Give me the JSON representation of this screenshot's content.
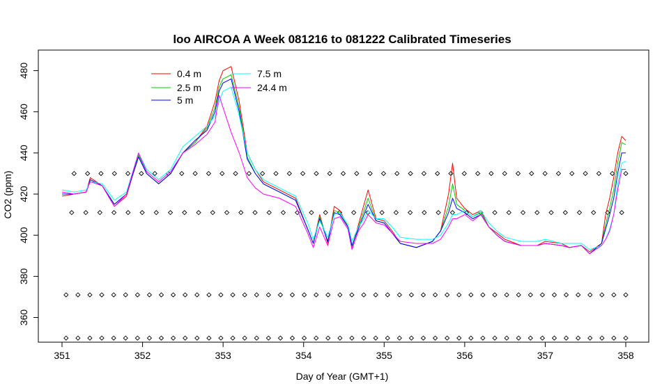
{
  "chart_data": {
    "type": "line",
    "title": "loo AIRCOA A  Week 081216 to 081222  Calibrated Timeseries",
    "xlabel": "Day of Year (GMT+1)",
    "ylabel": "CO2 (ppm)",
    "xlim": [
      351,
      358
    ],
    "ylim": [
      348,
      490
    ],
    "x_ticks": [
      "351",
      "352",
      "353",
      "354",
      "355",
      "356",
      "357",
      "358"
    ],
    "y_ticks": [
      "360",
      "380",
      "400",
      "420",
      "440",
      "460",
      "480"
    ],
    "grid": false,
    "legend_position": "top-left",
    "legend": [
      {
        "label": "0.4 m",
        "color": "#ff0000"
      },
      {
        "label": "2.5 m",
        "color": "#00cc00"
      },
      {
        "label": "5 m",
        "color": "#0000ff"
      },
      {
        "label": "7.5 m",
        "color": "#00ffff"
      },
      {
        "label": "24.4 m",
        "color": "#ff00ff"
      }
    ],
    "series": [
      {
        "name": "0.4 m",
        "color": "#ff0000",
        "x": [
          351.0,
          351.15,
          351.3,
          351.35,
          351.5,
          351.65,
          351.8,
          351.95,
          352.05,
          352.2,
          352.35,
          352.5,
          352.65,
          352.8,
          352.9,
          352.95,
          353.0,
          353.1,
          353.2,
          353.3,
          353.4,
          353.5,
          353.7,
          353.9,
          354.05,
          354.12,
          354.2,
          354.3,
          354.38,
          354.45,
          354.55,
          354.6,
          354.68,
          354.75,
          354.8,
          354.9,
          355.0,
          355.1,
          355.2,
          355.4,
          355.6,
          355.7,
          355.8,
          355.85,
          355.9,
          356.0,
          356.1,
          356.2,
          356.3,
          356.4,
          356.5,
          356.7,
          356.9,
          357.0,
          357.2,
          357.3,
          357.45,
          357.55,
          357.7,
          357.75,
          357.8,
          357.85,
          357.9,
          357.95,
          358.0
        ],
        "y": [
          419,
          420,
          421,
          428,
          424,
          414,
          419,
          439,
          430,
          425,
          430,
          440,
          445,
          453,
          465,
          475,
          480,
          482,
          465,
          440,
          432,
          426,
          422,
          418,
          403,
          396,
          410,
          396,
          414,
          412,
          404,
          394,
          405,
          415,
          422,
          408,
          407,
          402,
          396,
          394,
          397,
          402,
          420,
          435,
          418,
          413,
          410,
          412,
          404,
          401,
          398,
          395,
          395,
          397,
          396,
          394,
          395,
          392,
          396,
          410,
          418,
          428,
          440,
          448,
          446
        ]
      },
      {
        "name": "2.5 m",
        "color": "#00cc00",
        "x": [
          351.0,
          351.15,
          351.3,
          351.35,
          351.5,
          351.65,
          351.8,
          351.95,
          352.05,
          352.2,
          352.35,
          352.5,
          352.65,
          352.8,
          352.9,
          352.95,
          353.0,
          353.1,
          353.2,
          353.3,
          353.4,
          353.5,
          353.7,
          353.9,
          354.05,
          354.12,
          354.2,
          354.3,
          354.38,
          354.45,
          354.55,
          354.6,
          354.68,
          354.75,
          354.8,
          354.9,
          355.0,
          355.1,
          355.2,
          355.4,
          355.6,
          355.7,
          355.8,
          355.85,
          355.9,
          356.0,
          356.1,
          356.2,
          356.3,
          356.4,
          356.5,
          356.7,
          356.9,
          357.0,
          357.2,
          357.3,
          357.45,
          357.55,
          357.7,
          357.75,
          357.8,
          357.85,
          357.9,
          357.95,
          358.0
        ],
        "y": [
          420,
          420,
          421,
          427,
          424,
          415,
          420,
          439,
          430,
          425,
          430,
          440,
          445,
          452,
          462,
          472,
          476,
          478,
          462,
          438,
          430,
          425,
          421,
          417,
          403,
          396,
          409,
          397,
          412,
          411,
          404,
          394,
          404,
          412,
          418,
          407,
          406,
          401,
          396,
          394,
          397,
          402,
          414,
          425,
          415,
          412,
          409,
          411,
          404,
          400,
          397,
          395,
          395,
          396,
          395,
          394,
          395,
          391,
          396,
          405,
          413,
          422,
          435,
          445,
          444
        ]
      },
      {
        "name": "5 m",
        "color": "#0000ff",
        "x": [
          351.0,
          351.15,
          351.3,
          351.35,
          351.5,
          351.65,
          351.8,
          351.95,
          352.05,
          352.2,
          352.35,
          352.5,
          352.65,
          352.8,
          352.9,
          352.95,
          353.0,
          353.1,
          353.2,
          353.3,
          353.4,
          353.5,
          353.7,
          353.9,
          354.05,
          354.12,
          354.2,
          354.3,
          354.38,
          354.45,
          354.55,
          354.6,
          354.68,
          354.75,
          354.8,
          354.9,
          355.0,
          355.1,
          355.2,
          355.4,
          355.6,
          355.7,
          355.8,
          355.85,
          355.9,
          356.0,
          356.1,
          356.2,
          356.3,
          356.4,
          356.5,
          356.7,
          356.9,
          357.0,
          357.2,
          357.3,
          357.45,
          357.55,
          357.7,
          357.75,
          357.8,
          357.85,
          357.9,
          357.95,
          358.0
        ],
        "y": [
          420,
          420,
          421,
          427,
          424,
          415,
          420,
          438,
          430,
          425,
          430,
          440,
          446,
          451,
          460,
          470,
          474,
          476,
          460,
          437,
          430,
          425,
          421,
          417,
          403,
          396,
          408,
          397,
          411,
          410,
          404,
          395,
          403,
          410,
          415,
          407,
          406,
          401,
          396,
          394,
          397,
          402,
          411,
          418,
          413,
          411,
          408,
          410,
          404,
          400,
          397,
          395,
          395,
          396,
          395,
          394,
          395,
          391,
          396,
          403,
          410,
          418,
          430,
          440,
          440
        ]
      },
      {
        "name": "7.5 m",
        "color": "#00ffff",
        "x": [
          351.0,
          351.15,
          351.3,
          351.35,
          351.5,
          351.65,
          351.8,
          351.95,
          352.05,
          352.2,
          352.35,
          352.5,
          352.65,
          352.8,
          352.9,
          352.95,
          353.0,
          353.1,
          353.2,
          353.3,
          353.4,
          353.5,
          353.7,
          353.9,
          354.05,
          354.12,
          354.2,
          354.3,
          354.38,
          354.45,
          354.55,
          354.6,
          354.68,
          354.75,
          354.8,
          354.9,
          355.0,
          355.1,
          355.2,
          355.4,
          355.6,
          355.7,
          355.8,
          355.85,
          355.9,
          356.0,
          356.1,
          356.2,
          356.3,
          356.4,
          356.5,
          356.7,
          356.9,
          357.0,
          357.2,
          357.3,
          357.45,
          357.55,
          357.7,
          357.75,
          357.8,
          357.85,
          357.9,
          357.95,
          358.0
        ],
        "y": [
          422,
          421,
          422,
          426,
          425,
          417,
          421,
          440,
          432,
          427,
          432,
          443,
          448,
          453,
          458,
          465,
          470,
          472,
          458,
          440,
          432,
          427,
          423,
          419,
          406,
          398,
          407,
          399,
          410,
          411,
          405,
          397,
          404,
          408,
          412,
          408,
          408,
          404,
          399,
          398,
          398,
          400,
          406,
          410,
          410,
          412,
          409,
          412,
          406,
          402,
          399,
          397,
          397,
          398,
          396,
          396,
          396,
          393,
          395,
          398,
          403,
          410,
          425,
          435,
          436
        ]
      },
      {
        "name": "24.4 m",
        "color": "#ff00ff",
        "x": [
          351.0,
          351.15,
          351.3,
          351.35,
          351.5,
          351.65,
          351.8,
          351.95,
          352.05,
          352.2,
          352.35,
          352.5,
          352.65,
          352.8,
          352.9,
          352.95,
          353.0,
          353.1,
          353.2,
          353.3,
          353.4,
          353.5,
          353.7,
          353.9,
          354.05,
          354.12,
          354.2,
          354.3,
          354.38,
          354.45,
          354.55,
          354.6,
          354.68,
          354.75,
          354.8,
          354.9,
          355.0,
          355.1,
          355.2,
          355.4,
          355.6,
          355.7,
          355.8,
          355.85,
          355.9,
          356.0,
          356.1,
          356.2,
          356.3,
          356.4,
          356.5,
          356.7,
          356.9,
          357.0,
          357.2,
          357.3,
          357.45,
          357.55,
          357.7,
          357.75,
          357.8,
          357.85,
          357.9,
          357.95,
          358.0
        ],
        "y": [
          421,
          420,
          421,
          426,
          424,
          414,
          420,
          440,
          431,
          426,
          431,
          440,
          444,
          449,
          455,
          468,
          462,
          450,
          440,
          428,
          423,
          420,
          418,
          414,
          401,
          394,
          404,
          395,
          408,
          409,
          403,
          393,
          402,
          406,
          410,
          406,
          405,
          401,
          397,
          396,
          396,
          398,
          404,
          408,
          408,
          410,
          407,
          410,
          404,
          400,
          397,
          395,
          395,
          396,
          395,
          394,
          395,
          391,
          395,
          398,
          402,
          410,
          422,
          432,
          432
        ]
      }
    ],
    "flag_marker_rows": [
      {
        "y": 430,
        "x_start": 351.15,
        "x_end": 358.0,
        "count": 42
      },
      {
        "y": 411,
        "x_start": 351.12,
        "x_end": 357.95,
        "count": 40
      },
      {
        "y": 371,
        "x_start": 351.05,
        "x_end": 358.0,
        "count": 48
      },
      {
        "y": 350,
        "x_start": 351.05,
        "x_end": 358.0,
        "count": 48
      }
    ]
  }
}
